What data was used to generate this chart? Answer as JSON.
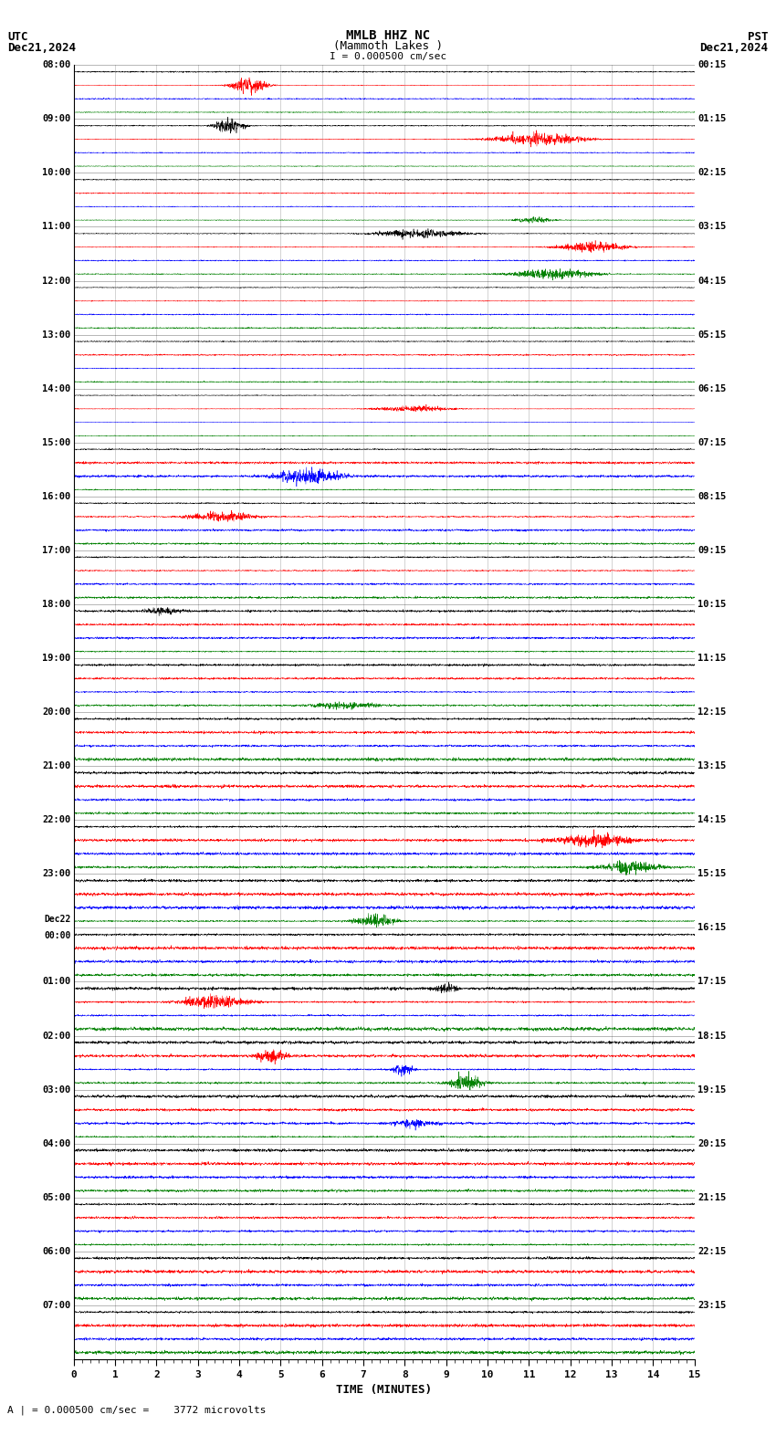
{
  "title_line1": "MMLB HHZ NC",
  "title_line2": "(Mammoth Lakes )",
  "scale_label": "I = 0.000500 cm/sec",
  "bottom_label": "A | = 0.000500 cm/sec =    3772 microvolts",
  "utc_label": "UTC",
  "pst_label": "PST",
  "date_left": "Dec21,2024",
  "date_right": "Dec21,2024",
  "xlabel": "TIME (MINUTES)",
  "left_times": [
    "08:00",
    "09:00",
    "10:00",
    "11:00",
    "12:00",
    "13:00",
    "14:00",
    "15:00",
    "16:00",
    "17:00",
    "18:00",
    "19:00",
    "20:00",
    "21:00",
    "22:00",
    "23:00",
    "Dec22\n00:00",
    "01:00",
    "02:00",
    "03:00",
    "04:00",
    "05:00",
    "06:00",
    "07:00"
  ],
  "right_times": [
    "00:15",
    "01:15",
    "02:15",
    "03:15",
    "04:15",
    "05:15",
    "06:15",
    "07:15",
    "08:15",
    "09:15",
    "10:15",
    "11:15",
    "12:15",
    "13:15",
    "14:15",
    "15:15",
    "16:15",
    "17:15",
    "18:15",
    "19:15",
    "20:15",
    "21:15",
    "22:15",
    "23:15"
  ],
  "num_hours": 24,
  "traces_per_hour": 4,
  "colors": [
    "black",
    "red",
    "blue",
    "green"
  ],
  "bg_color": "white",
  "xticks": [
    0,
    1,
    2,
    3,
    4,
    5,
    6,
    7,
    8,
    9,
    10,
    11,
    12,
    13,
    14,
    15
  ],
  "xmin": 0,
  "xmax": 15,
  "n_points": 3000
}
